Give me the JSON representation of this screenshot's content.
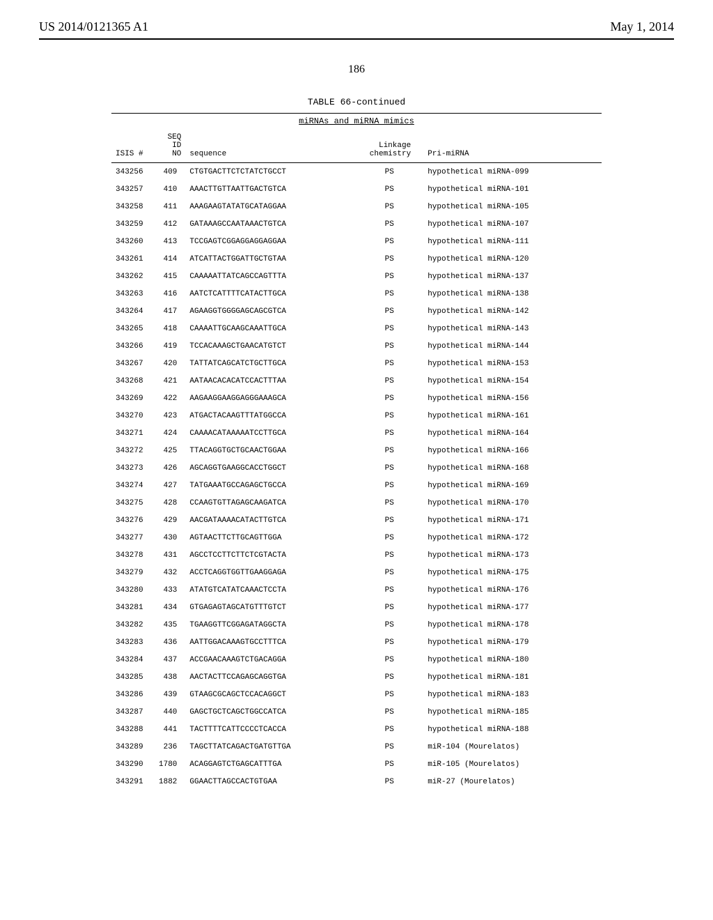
{
  "header": {
    "publication_number": "US 2014/0121365 A1",
    "publication_date": "May 1, 2014"
  },
  "page_number": "186",
  "table": {
    "caption": "TABLE 66-continued",
    "subcaption": "miRNAs and miRNA mimics",
    "columns": {
      "isis": "ISIS #",
      "seqid": "SEQ\nID\nNO",
      "sequence": "sequence",
      "linkage": "Linkage\nchemistry",
      "primirna": "Pri-miRNA"
    },
    "rows": [
      {
        "isis": "343256",
        "seqid": "409",
        "sequence": "CTGTGACTTCTCTATCTGCCT",
        "linkage": "PS",
        "primirna": "hypothetical miRNA-099"
      },
      {
        "isis": "343257",
        "seqid": "410",
        "sequence": "AAACTTGTTAATTGACTGTCA",
        "linkage": "PS",
        "primirna": "hypothetical miRNA-101"
      },
      {
        "isis": "343258",
        "seqid": "411",
        "sequence": "AAAGAAGTATATGCATAGGAA",
        "linkage": "PS",
        "primirna": "hypothetical miRNA-105"
      },
      {
        "isis": "343259",
        "seqid": "412",
        "sequence": "GATAAAGCCAATAAACTGTCA",
        "linkage": "PS",
        "primirna": "hypothetical miRNA-107"
      },
      {
        "isis": "343260",
        "seqid": "413",
        "sequence": "TCCGAGTCGGAGGAGGAGGAA",
        "linkage": "PS",
        "primirna": "hypothetical miRNA-111"
      },
      {
        "isis": "343261",
        "seqid": "414",
        "sequence": "ATCATTACTGGATTGCTGTAA",
        "linkage": "PS",
        "primirna": "hypothetical miRNA-120"
      },
      {
        "isis": "343262",
        "seqid": "415",
        "sequence": "CAAAAATTATCAGCCAGTTTA",
        "linkage": "PS",
        "primirna": "hypothetical miRNA-137"
      },
      {
        "isis": "343263",
        "seqid": "416",
        "sequence": "AATCTCATTTTCATACTTGCA",
        "linkage": "PS",
        "primirna": "hypothetical miRNA-138"
      },
      {
        "isis": "343264",
        "seqid": "417",
        "sequence": "AGAAGGTGGGGAGCAGCGTCA",
        "linkage": "PS",
        "primirna": "hypothetical miRNA-142"
      },
      {
        "isis": "343265",
        "seqid": "418",
        "sequence": "CAAAATTGCAAGCAAATTGCA",
        "linkage": "PS",
        "primirna": "hypothetical miRNA-143"
      },
      {
        "isis": "343266",
        "seqid": "419",
        "sequence": "TCCACAAAGCTGAACATGTCT",
        "linkage": "PS",
        "primirna": "hypothetical miRNA-144"
      },
      {
        "isis": "343267",
        "seqid": "420",
        "sequence": "TATTATCAGCATCTGCTTGCA",
        "linkage": "PS",
        "primirna": "hypothetical miRNA-153"
      },
      {
        "isis": "343268",
        "seqid": "421",
        "sequence": "AATAACACACATCCACTTTAA",
        "linkage": "PS",
        "primirna": "hypothetical miRNA-154"
      },
      {
        "isis": "343269",
        "seqid": "422",
        "sequence": "AAGAAGGAAGGAGGGAAAGCA",
        "linkage": "PS",
        "primirna": "hypothetical miRNA-156"
      },
      {
        "isis": "343270",
        "seqid": "423",
        "sequence": "ATGACTACAAGTTTATGGCCA",
        "linkage": "PS",
        "primirna": "hypothetical miRNA-161"
      },
      {
        "isis": "343271",
        "seqid": "424",
        "sequence": "CAAAACATAAAAATCCTTGCA",
        "linkage": "PS",
        "primirna": "hypothetical miRNA-164"
      },
      {
        "isis": "343272",
        "seqid": "425",
        "sequence": "TTACAGGTGCTGCAACTGGAA",
        "linkage": "PS",
        "primirna": "hypothetical miRNA-166"
      },
      {
        "isis": "343273",
        "seqid": "426",
        "sequence": "AGCAGGTGAAGGCACCTGGCT",
        "linkage": "PS",
        "primirna": "hypothetical miRNA-168"
      },
      {
        "isis": "343274",
        "seqid": "427",
        "sequence": "TATGAAATGCCAGAGCTGCCA",
        "linkage": "PS",
        "primirna": "hypothetical miRNA-169"
      },
      {
        "isis": "343275",
        "seqid": "428",
        "sequence": "CCAAGTGTTAGAGCAAGATCA",
        "linkage": "PS",
        "primirna": "hypothetical miRNA-170"
      },
      {
        "isis": "343276",
        "seqid": "429",
        "sequence": "AACGATAAAACATACTTGTCA",
        "linkage": "PS",
        "primirna": "hypothetical miRNA-171"
      },
      {
        "isis": "343277",
        "seqid": "430",
        "sequence": "AGTAACTTCTTGCAGTTGGA",
        "linkage": "PS",
        "primirna": "hypothetical miRNA-172"
      },
      {
        "isis": "343278",
        "seqid": "431",
        "sequence": "AGCCTCCTTCTTCTCGTACTA",
        "linkage": "PS",
        "primirna": "hypothetical miRNA-173"
      },
      {
        "isis": "343279",
        "seqid": "432",
        "sequence": "ACCTCAGGTGGTTGAAGGAGA",
        "linkage": "PS",
        "primirna": "hypothetical miRNA-175"
      },
      {
        "isis": "343280",
        "seqid": "433",
        "sequence": "ATATGTCATATCAAACTCCTA",
        "linkage": "PS",
        "primirna": "hypothetical miRNA-176"
      },
      {
        "isis": "343281",
        "seqid": "434",
        "sequence": "GTGAGAGTAGCATGTTTGTCT",
        "linkage": "PS",
        "primirna": "hypothetical miRNA-177"
      },
      {
        "isis": "343282",
        "seqid": "435",
        "sequence": "TGAAGGTTCGGAGATAGGCTA",
        "linkage": "PS",
        "primirna": "hypothetical miRNA-178"
      },
      {
        "isis": "343283",
        "seqid": "436",
        "sequence": "AATTGGACAAAGTGCCTTTCA",
        "linkage": "PS",
        "primirna": "hypothetical miRNA-179"
      },
      {
        "isis": "343284",
        "seqid": "437",
        "sequence": "ACCGAACAAAGTCTGACAGGA",
        "linkage": "PS",
        "primirna": "hypothetical miRNA-180"
      },
      {
        "isis": "343285",
        "seqid": "438",
        "sequence": "AACTACTTCCAGAGCAGGTGA",
        "linkage": "PS",
        "primirna": "hypothetical miRNA-181"
      },
      {
        "isis": "343286",
        "seqid": "439",
        "sequence": "GTAAGCGCAGCTCCACAGGCT",
        "linkage": "PS",
        "primirna": "hypothetical miRNA-183"
      },
      {
        "isis": "343287",
        "seqid": "440",
        "sequence": "GAGCTGCTCAGCTGGCCATCA",
        "linkage": "PS",
        "primirna": "hypothetical miRNA-185"
      },
      {
        "isis": "343288",
        "seqid": "441",
        "sequence": "TACTTTTCATTCCCCTCACCA",
        "linkage": "PS",
        "primirna": "hypothetical miRNA-188"
      },
      {
        "isis": "343289",
        "seqid": "236",
        "sequence": "TAGCTTATCAGACTGATGTTGA",
        "linkage": "PS",
        "primirna": "miR-104 (Mourelatos)"
      },
      {
        "isis": "343290",
        "seqid": "1780",
        "sequence": "ACAGGAGTCTGAGCATTTGA",
        "linkage": "PS",
        "primirna": "miR-105 (Mourelatos)"
      },
      {
        "isis": "343291",
        "seqid": "1882",
        "sequence": "GGAACTTAGCCACTGTGAA",
        "linkage": "PS",
        "primirna": "miR-27 (Mourelatos)"
      }
    ]
  }
}
